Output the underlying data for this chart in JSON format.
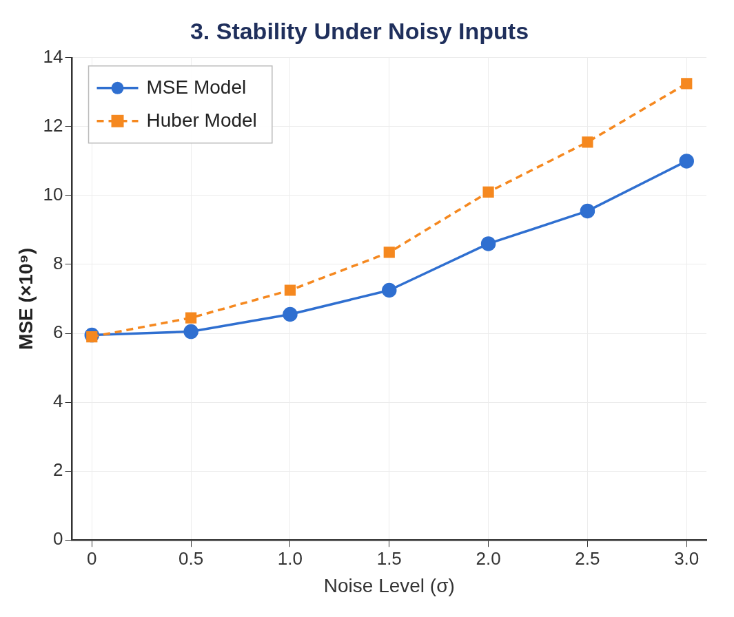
{
  "chart_data": {
    "type": "line",
    "title": "3. Stability Under Noisy Inputs",
    "xlabel": "Noise Level (σ)",
    "ylabel": "MSE (×10⁹)",
    "x": [
      0,
      0.5,
      1.0,
      1.5,
      2.0,
      2.5,
      3.0
    ],
    "xlim": [
      -0.1,
      3.1
    ],
    "xticks": [
      0,
      {
        "value": 0.5,
        "label": "0.5"
      },
      {
        "value": 1,
        "label": "1.0"
      },
      {
        "value": 1.5,
        "label": "1.5"
      },
      {
        "value": 2,
        "label": "2.0"
      },
      {
        "value": 2.5,
        "label": "2.5"
      },
      {
        "value": 3,
        "label": "3.0"
      }
    ],
    "ylim": [
      0,
      14
    ],
    "yticks": [
      0,
      2,
      4,
      6,
      8,
      10,
      12,
      14
    ],
    "series": [
      {
        "name": "MSE Model",
        "color": "#2f6fd0",
        "values": [
          5.95,
          6.05,
          6.55,
          7.25,
          8.6,
          9.55,
          11.0
        ],
        "marker": "circle",
        "line_style": "solid"
      },
      {
        "name": "Huber Model",
        "color": "#f5881f",
        "values": [
          5.9,
          6.45,
          7.25,
          8.35,
          10.1,
          11.55,
          13.25
        ],
        "marker": "square",
        "line_style": "dashed"
      }
    ],
    "grid": true,
    "legend": "top left"
  }
}
